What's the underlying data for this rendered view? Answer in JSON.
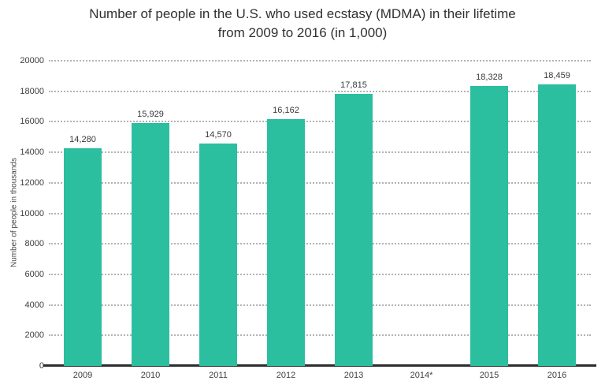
{
  "chart_data": {
    "type": "bar",
    "title": "Number of people in the U.S. who used ecstasy (MDMA) in their lifetime from 2009 to 2016 (in 1,000)",
    "title_lines": [
      "Number of people in the U.S. who used ecstasy (MDMA) in their lifetime",
      "from 2009 to 2016 (in 1,000)"
    ],
    "categories": [
      "2009",
      "2010",
      "2011",
      "2012",
      "2013",
      "2014*",
      "2015",
      "2016"
    ],
    "values": [
      14280,
      15929,
      14570,
      16162,
      17815,
      null,
      18328,
      18459
    ],
    "value_labels": [
      "14,280",
      "15,929",
      "14,570",
      "16,162",
      "17,815",
      "",
      "18,328",
      "18,459"
    ],
    "xlabel": "",
    "ylabel": "Number of people in thousands",
    "ylim": [
      0,
      20000
    ],
    "yticks": [
      0,
      2000,
      4000,
      6000,
      8000,
      10000,
      12000,
      14000,
      16000,
      18000,
      20000
    ],
    "grid": "horizontal-dotted",
    "legend": "none",
    "colors": {
      "bar": "#2cbf9f",
      "axis": "#2d2d2d",
      "grid": "#b3b3b3",
      "title_text": "#303030",
      "tick_text": "#3d3d3d",
      "label_text": "#383838"
    }
  }
}
